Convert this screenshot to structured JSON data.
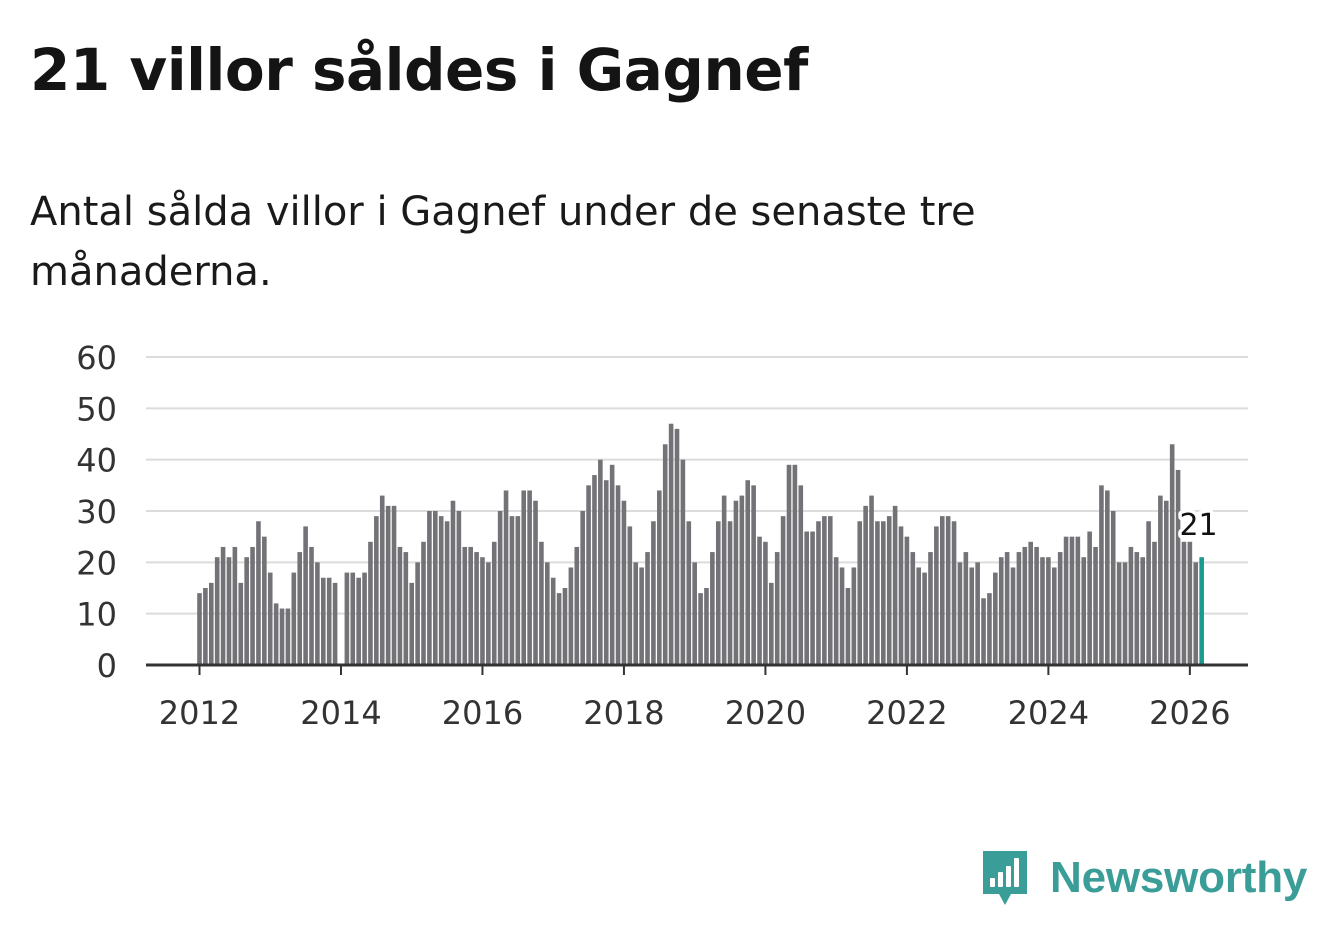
{
  "header": {
    "title": "21 villor såldes i Gagnef",
    "subtitle": "Antal sålda villor i Gagnef under de senaste tre månaderna."
  },
  "brand": {
    "name": "Newsworthy",
    "color": "#3a9d98",
    "icon": "newsworthy-logo-icon"
  },
  "colors": {
    "bar": "#737277",
    "highlight": "#1b9a8f",
    "grid": "#dcdcdc",
    "axis": "#333333"
  },
  "chart_data": {
    "type": "bar",
    "title": "21 villor såldes i Gagnef",
    "xlabel": "",
    "ylabel": "",
    "ylim": [
      0,
      60
    ],
    "yticks": [
      0,
      10,
      20,
      30,
      40,
      50,
      60
    ],
    "xticks": [
      "2012",
      "2014",
      "2016",
      "2018",
      "2020",
      "2022",
      "2024",
      "2026"
    ],
    "x_start": "2012-01",
    "x_end": "2026-02",
    "highlight_label": "21",
    "values": [
      14,
      15,
      16,
      21,
      23,
      21,
      23,
      16,
      21,
      23,
      28,
      25,
      18,
      12,
      11,
      11,
      18,
      22,
      27,
      23,
      20,
      17,
      17,
      16,
      0,
      18,
      18,
      17,
      18,
      24,
      29,
      33,
      31,
      31,
      23,
      22,
      16,
      20,
      24,
      30,
      30,
      29,
      28,
      32,
      30,
      23,
      23,
      22,
      21,
      20,
      24,
      30,
      34,
      29,
      29,
      34,
      34,
      32,
      24,
      20,
      17,
      14,
      15,
      19,
      23,
      30,
      35,
      37,
      40,
      36,
      39,
      35,
      32,
      27,
      20,
      19,
      22,
      28,
      34,
      43,
      47,
      46,
      40,
      28,
      20,
      14,
      15,
      22,
      28,
      33,
      28,
      32,
      33,
      36,
      35,
      25,
      24,
      16,
      22,
      29,
      39,
      39,
      35,
      26,
      26,
      28,
      29,
      29,
      21,
      19,
      15,
      19,
      28,
      31,
      33,
      28,
      28,
      29,
      31,
      27,
      25,
      22,
      19,
      18,
      22,
      27,
      29,
      29,
      28,
      20,
      22,
      19,
      20,
      13,
      14,
      18,
      21,
      22,
      19,
      22,
      23,
      24,
      23,
      21,
      21,
      19,
      22,
      25,
      25,
      25,
      21,
      26,
      23,
      35,
      34,
      30,
      20,
      20,
      23,
      22,
      21,
      28,
      24,
      33,
      32,
      43,
      38,
      24,
      24,
      20,
      21
    ]
  }
}
